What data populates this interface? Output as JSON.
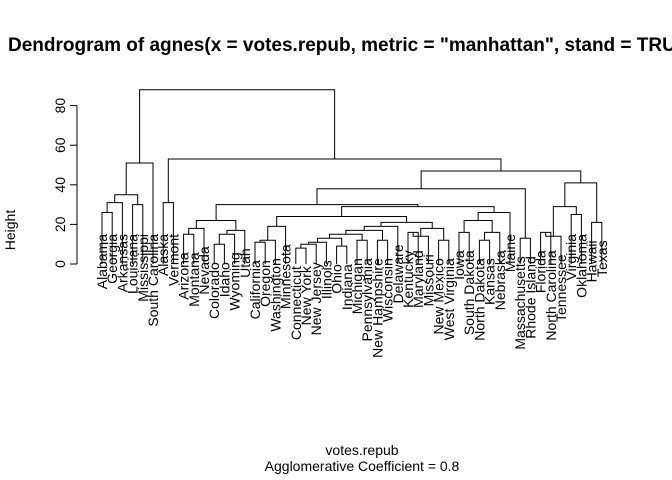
{
  "chart_data": {
    "type": "dendrogram",
    "title": "Dendrogram of  agnes(x = votes.repub, metric = \"manhattan\", stand = TRUE)",
    "ylabel": "Height",
    "xlabel": "votes.repub",
    "subtitle": "Agglomerative Coefficient =  0.8",
    "ylim": [
      0,
      90
    ],
    "yticks": [
      0,
      20,
      40,
      60,
      80
    ],
    "leaves": [
      "Alabama",
      "Georgia",
      "Arkansas",
      "Louisiana",
      "Mississippi",
      "South Carolina",
      "Alaska",
      "Vermont",
      "Arizona",
      "Montana",
      "Nevada",
      "Colorado",
      "Idaho",
      "Wyoming",
      "Utah",
      "California",
      "Oregon",
      "Washington",
      "Minnesota",
      "Connecticut",
      "New York",
      "New Jersey",
      "Illinois",
      "Ohio",
      "Indiana",
      "Michigan",
      "Pennsylvania",
      "New Hampshire",
      "Wisconsin",
      "Delaware",
      "Kentucky",
      "Maryland",
      "Missouri",
      "New Mexico",
      "West Virginia",
      "Iowa",
      "South Dakota",
      "North Dakota",
      "Kansas",
      "Nebraska",
      "Maine",
      "Massachusetts",
      "Rhode Island",
      "Florida",
      "North Carolina",
      "Tennessee",
      "Virginia",
      "Oklahoma",
      "Hawaii",
      "Texas"
    ],
    "merges": [
      {
        "a": "Alabama",
        "b": "Georgia",
        "h": 26
      },
      {
        "a": "c1",
        "b": "Arkansas",
        "h": 31
      },
      {
        "a": "Louisiana",
        "b": "Mississippi",
        "h": 30
      },
      {
        "a": "c2",
        "b": "c3",
        "h": 35
      },
      {
        "a": "c4",
        "b": "South Carolina",
        "h": 51
      },
      {
        "a": "Alaska",
        "b": "Vermont",
        "h": 31
      },
      {
        "a": "Arizona",
        "b": "Montana",
        "h": 15
      },
      {
        "a": "Nevada",
        "b": "c7",
        "h": 18
      },
      {
        "a": "Colorado",
        "b": "Idaho",
        "h": 10
      },
      {
        "a": "c9",
        "b": "Wyoming",
        "h": 15
      },
      {
        "a": "c10",
        "b": "Utah",
        "h": 17
      },
      {
        "a": "c8",
        "b": "c11",
        "h": 22
      },
      {
        "a": "California",
        "b": "Oregon",
        "h": 11
      },
      {
        "a": "c13",
        "b": "Washington",
        "h": 12
      },
      {
        "a": "c14",
        "b": "Minnesota",
        "h": 19
      },
      {
        "a": "Connecticut",
        "b": "New York",
        "h": 8
      },
      {
        "a": "c16",
        "b": "New Jersey",
        "h": 10
      },
      {
        "a": "c17",
        "b": "Illinois",
        "h": 11
      },
      {
        "a": "Ohio",
        "b": "Indiana",
        "h": 9
      },
      {
        "a": "c18",
        "b": "c19",
        "h": 13
      },
      {
        "a": "Michigan",
        "b": "Pennsylvania",
        "h": 12
      },
      {
        "a": "c20",
        "b": "c21",
        "h": 15
      },
      {
        "a": "New Hampshire",
        "b": "Wisconsin",
        "h": 12
      },
      {
        "a": "c22",
        "b": "c23",
        "h": 17
      },
      {
        "a": "c24",
        "b": "Delaware",
        "h": 19
      },
      {
        "a": "Kentucky",
        "b": "Maryland",
        "h": 16
      },
      {
        "a": "c26",
        "b": "Missouri",
        "h": 14
      },
      {
        "a": "New Mexico",
        "b": "West Virginia",
        "h": 12
      },
      {
        "a": "c27",
        "b": "c28",
        "h": 18
      },
      {
        "a": "c25",
        "b": "c29",
        "h": 21
      },
      {
        "a": "c15",
        "b": "c30",
        "h": 24
      },
      {
        "a": "Iowa",
        "b": "South Dakota",
        "h": 16
      },
      {
        "a": "North Dakota",
        "b": "Kansas",
        "h": 12
      },
      {
        "a": "c33",
        "b": "Nebraska",
        "h": 16
      },
      {
        "a": "c32",
        "b": "c34",
        "h": 22
      },
      {
        "a": "c35",
        "b": "Maine",
        "h": 26
      },
      {
        "a": "c31",
        "b": "c36",
        "h": 29
      },
      {
        "a": "c12",
        "b": "c37",
        "h": 30
      },
      {
        "a": "Massachusetts",
        "b": "Rhode Island",
        "h": 13
      },
      {
        "a": "c38",
        "b": "c39",
        "h": 38
      },
      {
        "a": "Florida",
        "b": "North Carolina",
        "h": 16
      },
      {
        "a": "c41",
        "b": "Tennessee",
        "h": 14
      },
      {
        "a": "Virginia",
        "b": "Oklahoma",
        "h": 25
      },
      {
        "a": "c42",
        "b": "c43",
        "h": 29
      },
      {
        "a": "Hawaii",
        "b": "Texas",
        "h": 21
      },
      {
        "a": "c44",
        "b": "c45",
        "h": 41
      },
      {
        "a": "c40",
        "b": "c46",
        "h": 47
      },
      {
        "a": "c6",
        "b": "c47",
        "h": 53
      },
      {
        "a": "c5",
        "b": "c48",
        "h": 88
      }
    ]
  }
}
